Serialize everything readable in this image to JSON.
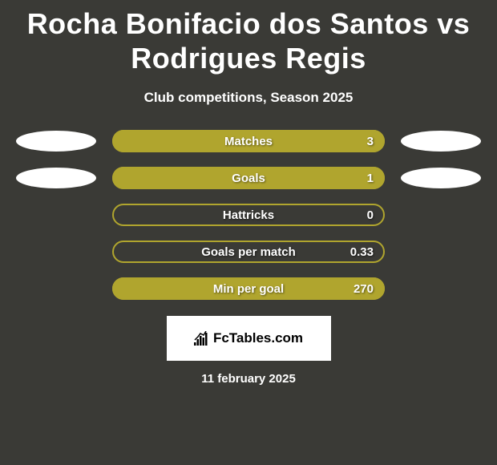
{
  "title": "Rocha Bonifacio dos Santos vs Rodrigues Regis",
  "subtitle": "Club competitions, Season 2025",
  "date": "11 february 2025",
  "logo_text": "FcTables.com",
  "colors": {
    "background": "#3a3a36",
    "pill_fill": "#b0a52e",
    "pill_border": "#b0a52e",
    "chip_bg": "#ffffff",
    "text": "#ffffff"
  },
  "stats": [
    {
      "label": "Matches",
      "value": "3",
      "fill_pct": 100,
      "show_chips": true
    },
    {
      "label": "Goals",
      "value": "1",
      "fill_pct": 100,
      "show_chips": true
    },
    {
      "label": "Hattricks",
      "value": "0",
      "fill_pct": 0,
      "show_chips": false
    },
    {
      "label": "Goals per match",
      "value": "0.33",
      "fill_pct": 0,
      "show_chips": false
    },
    {
      "label": "Min per goal",
      "value": "270",
      "fill_pct": 100,
      "show_chips": false
    }
  ]
}
